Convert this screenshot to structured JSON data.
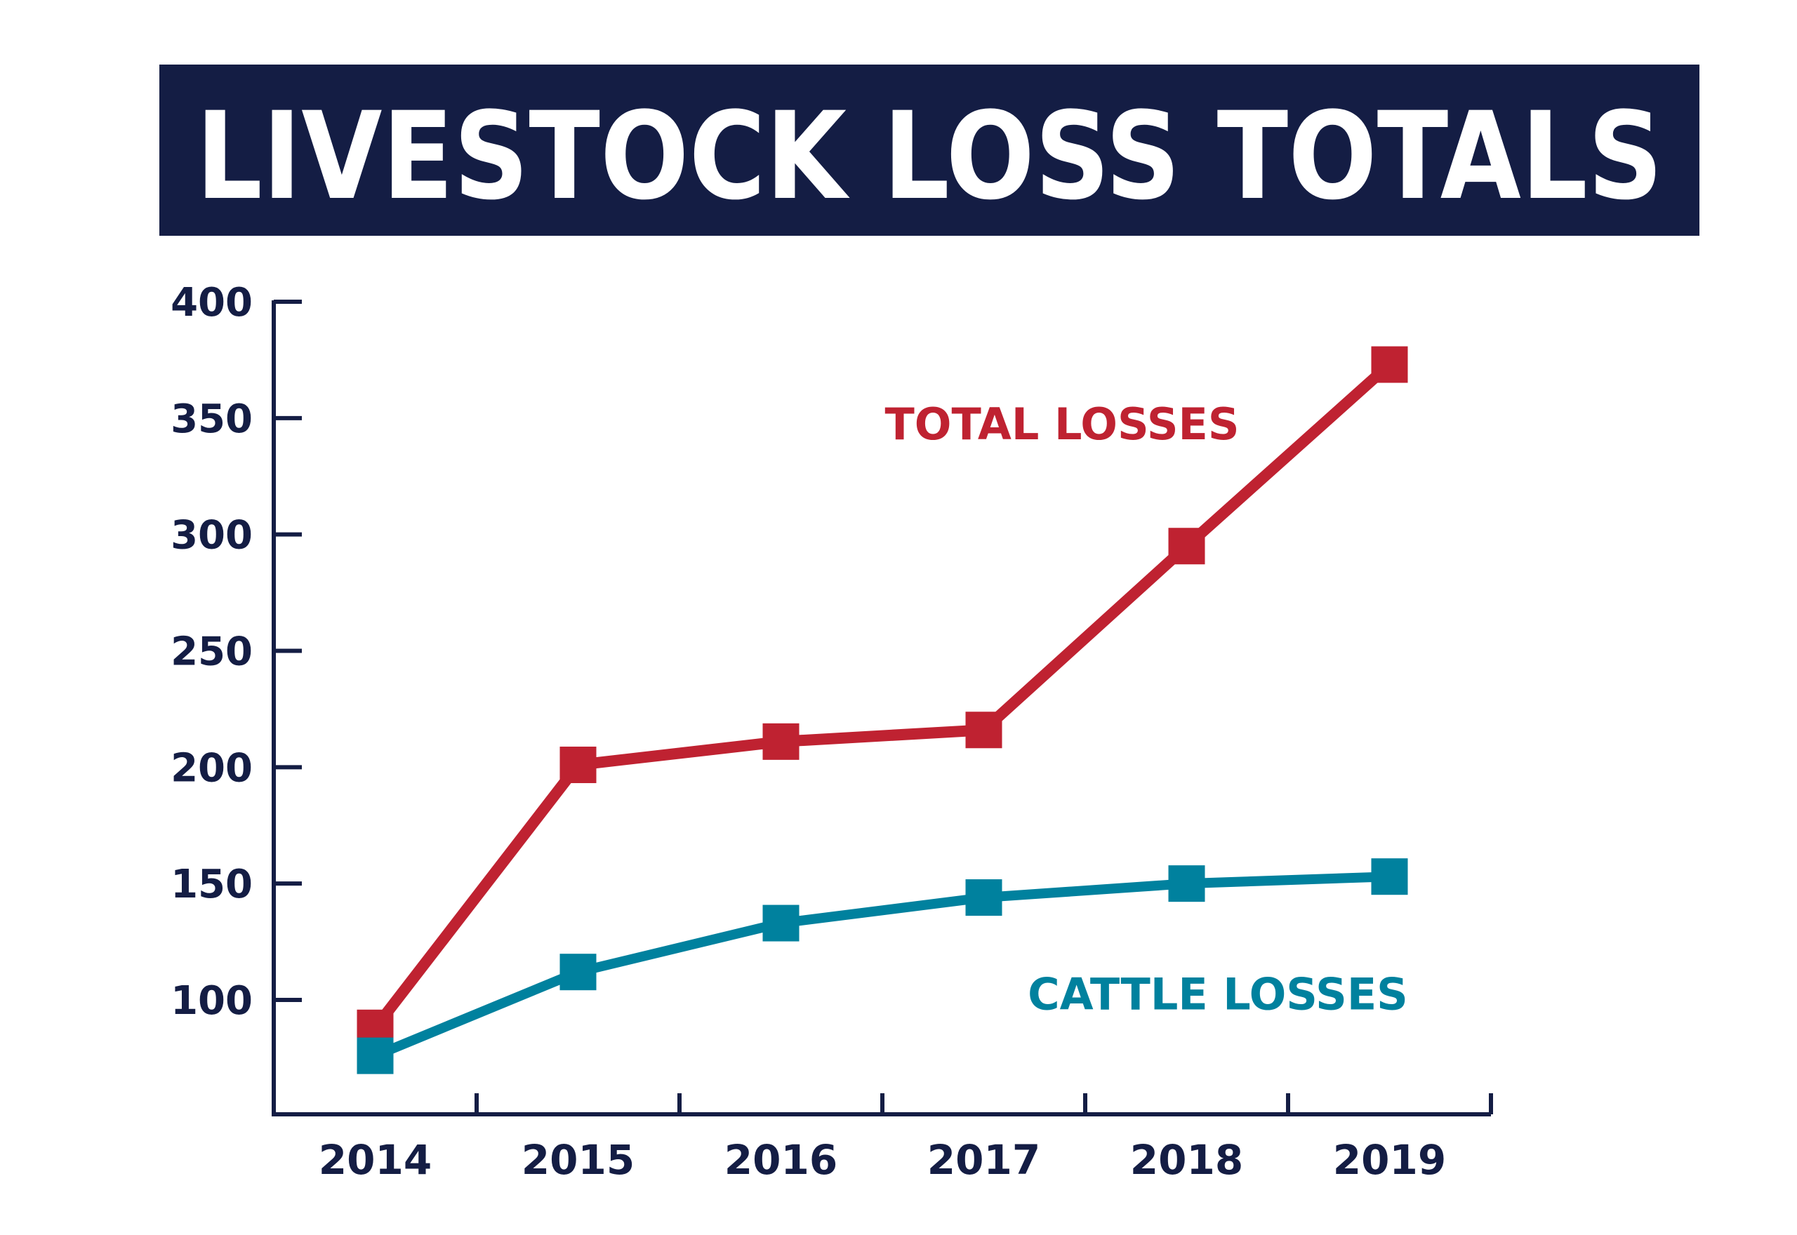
{
  "chart_data": {
    "type": "line",
    "title": "LIVESTOCK LOSS TOTALS",
    "xlabel": "",
    "ylabel": "",
    "categories": [
      "2014",
      "2015",
      "2016",
      "2017",
      "2018",
      "2019"
    ],
    "ylim": [
      50,
      400
    ],
    "yticks": [
      100,
      150,
      200,
      250,
      300,
      350,
      400
    ],
    "grid": false,
    "legend": "inline labels next to each line",
    "series": [
      {
        "name": "TOTAL LOSSES",
        "values": [
          88,
          201,
          211,
          216,
          295,
          373
        ],
        "color": "#bf2231",
        "marker": "square"
      },
      {
        "name": "CATTLE LOSSES",
        "values": [
          76,
          112,
          133,
          144,
          150,
          153
        ],
        "color": "#00819e",
        "marker": "square"
      }
    ]
  },
  "colors": {
    "title_bg": "#141d44",
    "title_text": "#ffffff",
    "axis": "#141d44",
    "tick_label": "#141d44"
  }
}
